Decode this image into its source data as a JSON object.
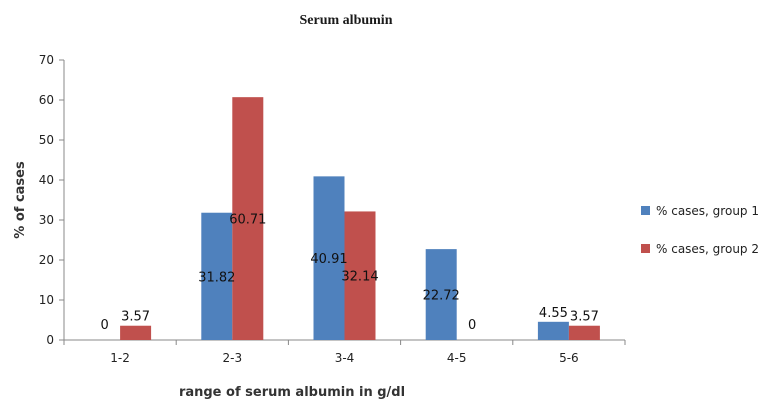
{
  "chart_data": {
    "type": "bar",
    "title": "Serum albumin",
    "xlabel": "range of serum albumin in g/dl",
    "ylabel": "% of cases",
    "categories": [
      "1-2",
      "2-3",
      "3-4",
      "4-5",
      "5-6"
    ],
    "ylim": [
      0,
      70
    ],
    "yticks": [
      0,
      10,
      20,
      30,
      40,
      50,
      60,
      70
    ],
    "grid": false,
    "legend_position": "right",
    "series": [
      {
        "name": "% cases, group 1",
        "color": "#4F81BD",
        "values": [
          0,
          31.82,
          40.91,
          22.72,
          4.55
        ],
        "labels": [
          "0",
          "31.82",
          "40.91",
          "22.72",
          "4.55"
        ]
      },
      {
        "name": "% cases, group 2",
        "color": "#C0504D",
        "values": [
          3.57,
          60.71,
          32.14,
          0,
          3.57
        ],
        "labels": [
          "3.57",
          "60.71",
          "32.14",
          "0",
          "3.57"
        ]
      }
    ]
  }
}
